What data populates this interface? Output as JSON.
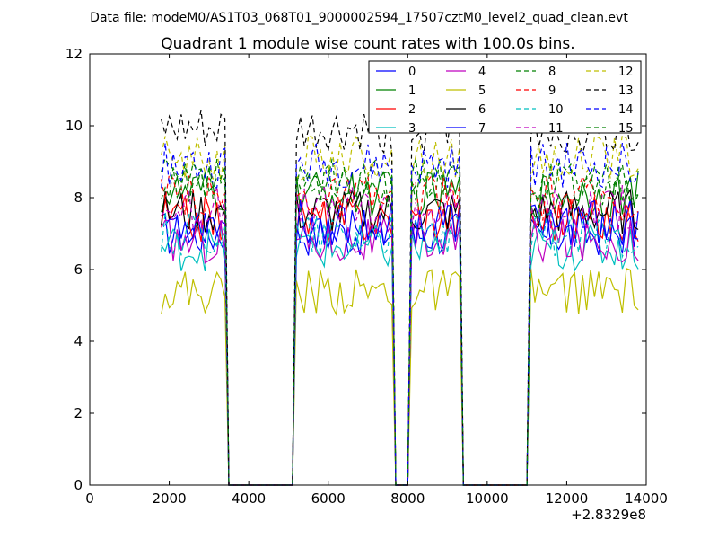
{
  "figure": {
    "suptitle": "Data file: modeM0/AS1T03_068T01_9000002594_17507cztM0_level2_quad_clean.evt",
    "offset_label": "+2.8329e8"
  },
  "chart_data": {
    "type": "line",
    "title": "Quadrant 1 module wise count rates with 100.0s bins.",
    "xlabel": "",
    "ylabel": "",
    "xlim": [
      0,
      14000
    ],
    "ylim": [
      0,
      12
    ],
    "x_ticks": [
      0,
      2000,
      4000,
      6000,
      8000,
      10000,
      12000,
      14000
    ],
    "y_ticks": [
      0,
      2,
      4,
      6,
      8,
      10,
      12
    ],
    "x_offset": "+2.8329e8",
    "grid": false,
    "legend_position": "top-right",
    "legend_columns": 4,
    "segments_active": [
      [
        1800,
        3400
      ],
      [
        5200,
        7600
      ],
      [
        8100,
        9300
      ],
      [
        11100,
        13800
      ]
    ],
    "series": [
      {
        "name": "0",
        "color": "#0000ff",
        "dash": "solid",
        "level": 7.0
      },
      {
        "name": "1",
        "color": "#008000",
        "dash": "solid",
        "level": 8.1
      },
      {
        "name": "2",
        "color": "#ff0000",
        "dash": "solid",
        "level": 7.4
      },
      {
        "name": "3",
        "color": "#00bfbf",
        "dash": "solid",
        "level": 6.6
      },
      {
        "name": "4",
        "color": "#bf00bf",
        "dash": "solid",
        "level": 6.8
      },
      {
        "name": "5",
        "color": "#bfbf00",
        "dash": "solid",
        "level": 5.4
      },
      {
        "name": "6",
        "color": "#000000",
        "dash": "solid",
        "level": 7.6
      },
      {
        "name": "7",
        "color": "#0000ff",
        "dash": "solid",
        "level": 7.3
      },
      {
        "name": "8",
        "color": "#008000",
        "dash": "dashed",
        "level": 8.5
      },
      {
        "name": "9",
        "color": "#ff0000",
        "dash": "dashed",
        "level": 8.0
      },
      {
        "name": "10",
        "color": "#00bfbf",
        "dash": "dashed",
        "level": 7.0
      },
      {
        "name": "11",
        "color": "#bf00bf",
        "dash": "dashed",
        "level": 7.7
      },
      {
        "name": "12",
        "color": "#bfbf00",
        "dash": "dashed",
        "level": 9.1
      },
      {
        "name": "13",
        "color": "#000000",
        "dash": "dashed",
        "level": 9.8
      },
      {
        "name": "14",
        "color": "#0000ff",
        "dash": "dashed",
        "level": 8.9
      },
      {
        "name": "15",
        "color": "#008000",
        "dash": "dashed",
        "level": 8.3
      }
    ]
  }
}
